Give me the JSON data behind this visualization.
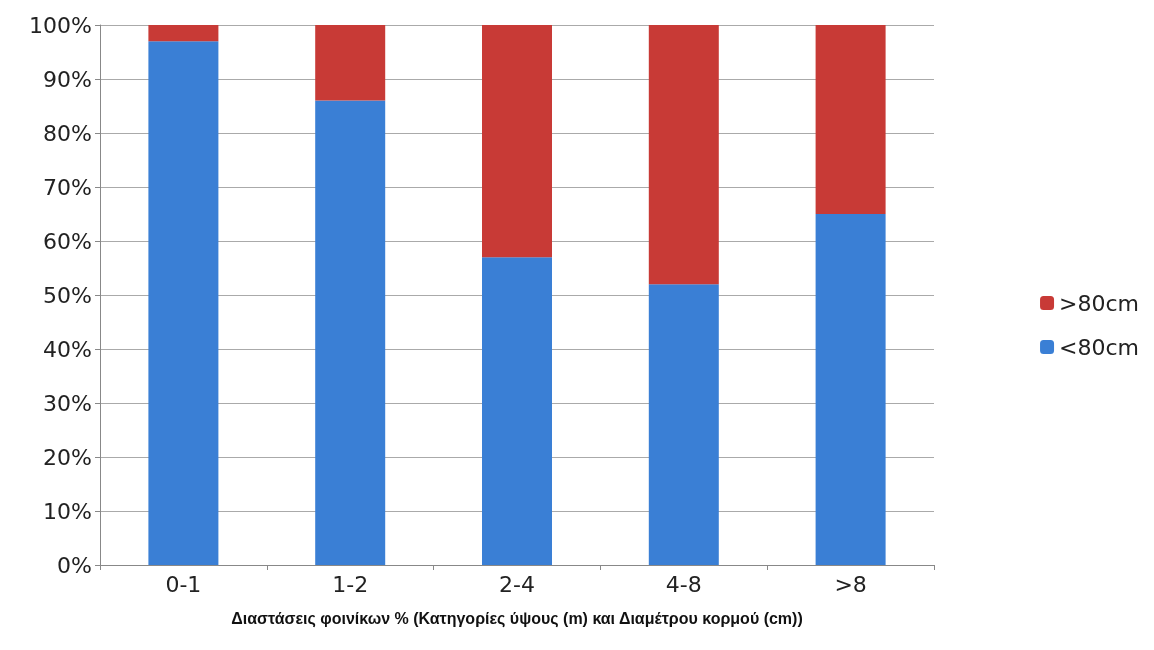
{
  "chart_data": {
    "type": "bar",
    "stacked": true,
    "xlabel": "Διαστάσεις φοινίκων % (Κατηγορίες ύψους (m) και Διαμέτρου κορμού (cm))",
    "categories": [
      "0-1",
      "1-2",
      "2-4",
      "4-8",
      ">8"
    ],
    "series": [
      {
        "name": "<80cm",
        "color": "#3a7fd5",
        "values": [
          97,
          86,
          57,
          52,
          65
        ]
      },
      {
        "name": ">80cm",
        "color": "#c83a36",
        "values": [
          3,
          14,
          43,
          48,
          35
        ]
      }
    ],
    "ylim": [
      0,
      100
    ],
    "yticks": [
      {
        "value": 0,
        "label": "0%"
      },
      {
        "value": 10,
        "label": "10%"
      },
      {
        "value": 20,
        "label": "20%"
      },
      {
        "value": 30,
        "label": "30%"
      },
      {
        "value": 40,
        "label": "40%"
      },
      {
        "value": 50,
        "label": "50%"
      },
      {
        "value": 60,
        "label": "60%"
      },
      {
        "value": 70,
        "label": "70%"
      },
      {
        "value": 80,
        "label": "80%"
      },
      {
        "value": 90,
        "label": "90%"
      },
      {
        "value": 100,
        "label": "100%"
      }
    ],
    "grid": true,
    "legend": "right"
  }
}
